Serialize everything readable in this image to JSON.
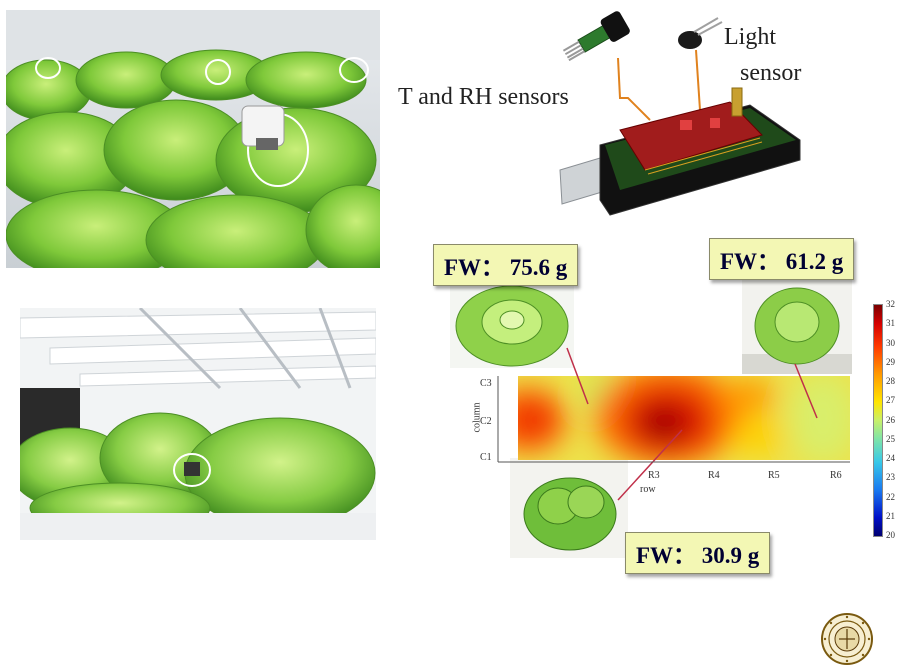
{
  "labels": {
    "t_rh": "T and RH sensors",
    "light_line1": "Light",
    "light_line2": "sensor"
  },
  "callouts": [
    {
      "text": "FW： 75.6 g"
    },
    {
      "text": "FW： 61.2 g"
    },
    {
      "text": "FW： 30.9 g"
    }
  ],
  "heatmap": {
    "y_axis_label": "column",
    "x_axis_label": "row",
    "y_ticks": [
      "C3",
      "C2",
      "C1"
    ],
    "x_ticks": [
      "R3",
      "R4",
      "R5",
      "R6"
    ],
    "colorbar_ticks": [
      "32",
      "31",
      "30",
      "29",
      "28",
      "27",
      "26",
      "25",
      "24",
      "23",
      "22",
      "21",
      "20"
    ]
  },
  "colors": {
    "callout_bg": "#f3f7b4",
    "lettuce": "#8fcf4a",
    "pcb_red": "#a11c1c"
  }
}
